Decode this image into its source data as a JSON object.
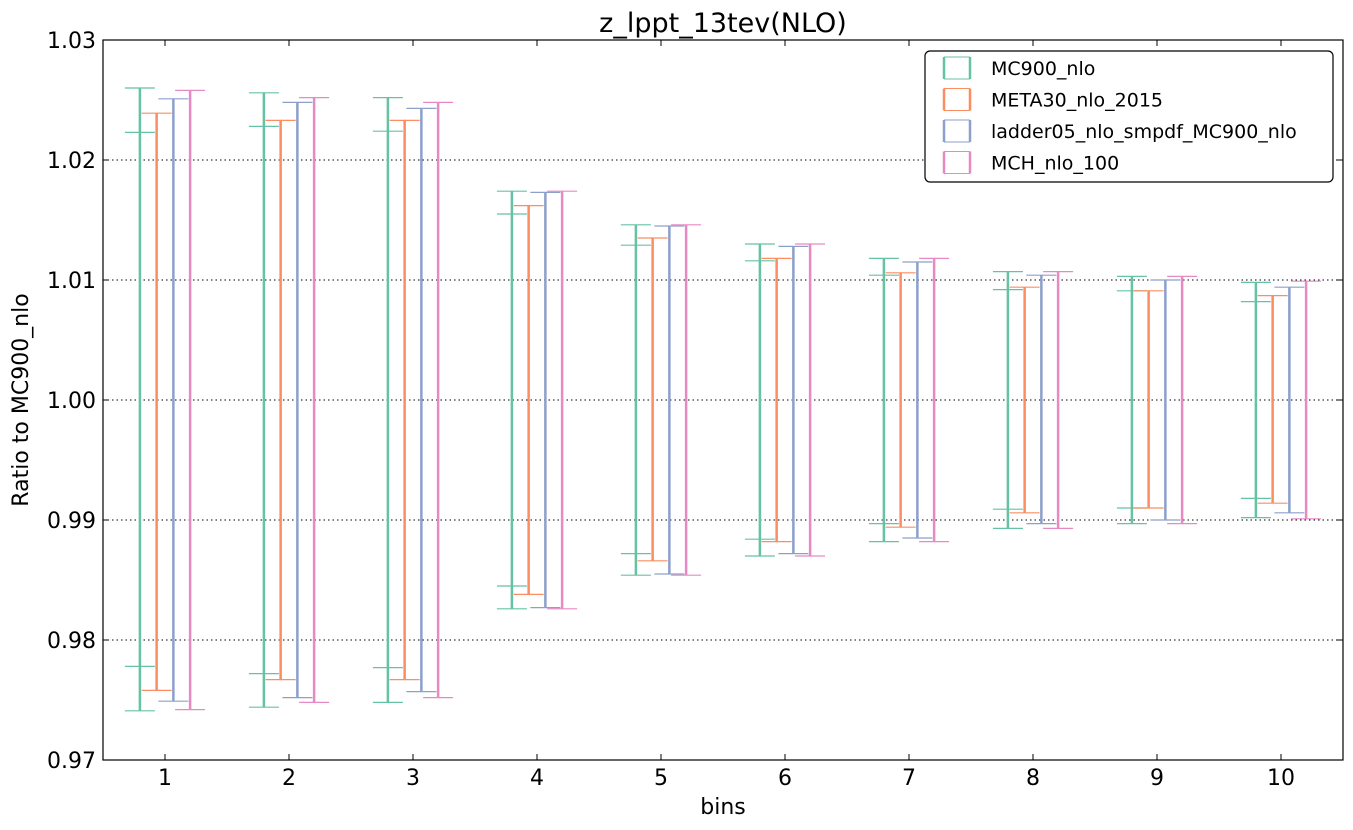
{
  "chart_data": {
    "type": "errorbar",
    "title": "z_lppt_13tev(NLO)",
    "xlabel": "bins",
    "ylabel": "Ratio to MC900_nlo",
    "xlim": [
      0.5,
      10.5
    ],
    "ylim": [
      0.97,
      1.03
    ],
    "x_ticks": [
      "1",
      "2",
      "3",
      "4",
      "5",
      "6",
      "7",
      "8",
      "9",
      "10"
    ],
    "y_ticks": [
      "0.97",
      "0.98",
      "0.99",
      "1.00",
      "1.01",
      "1.02",
      "1.03"
    ],
    "grid": "horizontal dotted",
    "legend_position": "top-right",
    "categories": [
      1,
      2,
      3,
      4,
      5,
      6,
      7,
      8,
      9,
      10
    ],
    "series": [
      {
        "name": "MC900_nlo",
        "color": "#66c2a5",
        "outer_low": [
          0.9741,
          0.9744,
          0.9748,
          0.9826,
          0.9854,
          0.987,
          0.9882,
          0.9893,
          0.9897,
          0.9902
        ],
        "outer_high": [
          1.026,
          1.0256,
          1.0252,
          1.0174,
          1.0146,
          1.013,
          1.0118,
          1.0107,
          1.0103,
          1.0098
        ],
        "inner_low": [
          0.9778,
          0.9772,
          0.9777,
          0.9845,
          0.9872,
          0.9884,
          0.9897,
          0.9909,
          0.991,
          0.9918
        ],
        "inner_high": [
          1.0223,
          1.0228,
          1.0224,
          1.0155,
          1.0129,
          1.0116,
          1.0104,
          1.0092,
          1.0091,
          1.0082
        ]
      },
      {
        "name": "META30_nlo_2015",
        "color": "#fc8d62",
        "outer_low": [
          0.9758,
          0.9767,
          0.9767,
          0.9838,
          0.9866,
          0.9882,
          0.9894,
          0.9906,
          0.991,
          0.9914
        ],
        "outer_high": [
          1.0239,
          1.0233,
          1.0233,
          1.0162,
          1.0135,
          1.0118,
          1.0106,
          1.0094,
          1.0091,
          1.0087
        ],
        "inner_low": [
          0.9758,
          0.9767,
          0.9767,
          0.9838,
          0.9866,
          0.9882,
          0.9894,
          0.9906,
          0.991,
          0.9914
        ],
        "inner_high": [
          1.0239,
          1.0233,
          1.0233,
          1.0162,
          1.0135,
          1.0118,
          1.0106,
          1.0094,
          1.0091,
          1.0087
        ]
      },
      {
        "name": "ladder05_nlo_smpdf_MC900_nlo",
        "color": "#8da0cb",
        "outer_low": [
          0.9749,
          0.9752,
          0.9757,
          0.9827,
          0.9855,
          0.9872,
          0.9885,
          0.9897,
          0.99,
          0.9906
        ],
        "outer_high": [
          1.0251,
          1.0248,
          1.0243,
          1.0173,
          1.0145,
          1.0128,
          1.0115,
          1.0104,
          1.01,
          1.0094
        ],
        "inner_low": [
          0.9749,
          0.9752,
          0.9757,
          0.9827,
          0.9855,
          0.9872,
          0.9885,
          0.9897,
          0.99,
          0.9906
        ],
        "inner_high": [
          1.0251,
          1.0248,
          1.0243,
          1.0173,
          1.0145,
          1.0128,
          1.0115,
          1.0104,
          1.01,
          1.0094
        ]
      },
      {
        "name": "MCH_nlo_100",
        "color": "#e78ac3",
        "outer_low": [
          0.9742,
          0.9748,
          0.9752,
          0.9826,
          0.9854,
          0.987,
          0.9882,
          0.9893,
          0.9897,
          0.9901
        ],
        "outer_high": [
          1.0258,
          1.0252,
          1.0248,
          1.0174,
          1.0146,
          1.013,
          1.0118,
          1.0107,
          1.0103,
          1.0099
        ],
        "inner_low": [
          0.9742,
          0.9748,
          0.9752,
          0.9826,
          0.9854,
          0.987,
          0.9882,
          0.9893,
          0.9897,
          0.9901
        ],
        "inner_high": [
          1.0258,
          1.0252,
          1.0248,
          1.0174,
          1.0146,
          1.013,
          1.0118,
          1.0107,
          1.0103,
          1.0099
        ]
      }
    ]
  }
}
